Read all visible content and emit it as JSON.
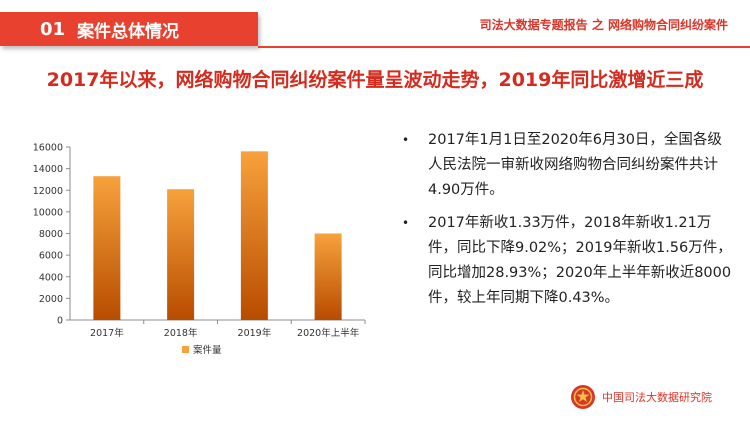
{
  "header": {
    "section_number": "01",
    "section_title": "案件总体情况",
    "report_title": "司法大数据专题报告 之 网络购物合同纠纷案件"
  },
  "headline": "2017年以来，网络购物合同纠纷案件量呈波动走势，2019年同比激增近三成",
  "chart_data": {
    "type": "bar",
    "categories": [
      "2017年",
      "2018年",
      "2019年",
      "2020年上半年"
    ],
    "series": [
      {
        "name": "案件量",
        "values": [
          13300,
          12100,
          15600,
          8000
        ]
      }
    ],
    "ylim": [
      0,
      16000
    ],
    "yticks": [
      0,
      2000,
      4000,
      6000,
      8000,
      10000,
      12000,
      14000,
      16000
    ],
    "grid": false,
    "legend": "bottom",
    "bar_color_top": "#f7a23c",
    "bar_color_bottom": "#b84c00"
  },
  "bullets": [
    "2017年1月1日至2020年6月30日，全国各级人民法院一审新收网络购物合同纠纷案件共计4.90万件。",
    "2017年新收1.33万件，2018年新收1.21万件，同比下降9.02%；2019年新收1.56万件，同比增加28.93%；2020年上半年新收近8000件，较上年同期下降0.43%。"
  ],
  "bullet_symbol": "•",
  "footer": {
    "logo_icon": "court-emblem-icon",
    "org_name": "中国司法大数据研究院"
  },
  "colors": {
    "accent": "#e8412f",
    "headline": "#d42b1e",
    "text": "#222222"
  }
}
